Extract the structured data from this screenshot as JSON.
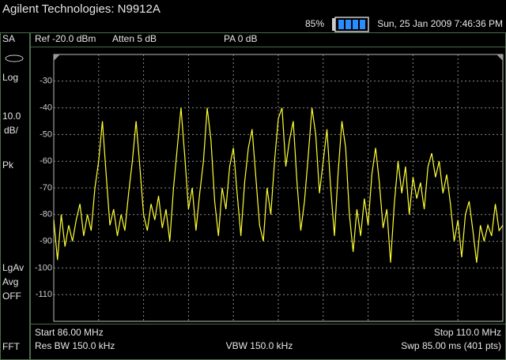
{
  "header": {
    "title": "Agilent Technologies: N9912A",
    "battery": "85%",
    "datetime": "Sun, 25 Jan 2009 7:46:36 PM"
  },
  "sidebar": {
    "mode": "SA",
    "scale_type": "Log",
    "scale": "10.0",
    "scale_unit": "dB/",
    "detector": "Pk",
    "avg_type": "LgAv",
    "avg_label": "Avg",
    "avg_state": "OFF",
    "mode2": "FFT"
  },
  "status": {
    "ref": "Ref -20.0 dBm",
    "atten": "Atten 5 dB",
    "preamp": "PA 0 dB"
  },
  "footer": {
    "start": "Start 86.00 MHz",
    "stop": "Stop 110.0 MHz",
    "rbw": "Res BW 150.0 kHz",
    "vbw": "VBW 150.0 kHz",
    "sweep": "Swp 85.00 ms (401 pts)"
  },
  "chart_data": {
    "type": "line",
    "x": [
      86.0,
      86.2,
      86.4,
      86.6,
      86.8,
      87.0,
      87.2,
      87.4,
      87.6,
      87.8,
      88.0,
      88.2,
      88.4,
      88.6,
      88.8,
      89.0,
      89.2,
      89.4,
      89.6,
      89.8,
      90.0,
      90.2,
      90.4,
      90.6,
      90.8,
      91.0,
      91.2,
      91.4,
      91.6,
      91.8,
      92.0,
      92.2,
      92.4,
      92.6,
      92.8,
      93.0,
      93.2,
      93.4,
      93.6,
      93.8,
      94.0,
      94.2,
      94.4,
      94.6,
      94.8,
      95.0,
      95.2,
      95.4,
      95.6,
      95.8,
      96.0,
      96.2,
      96.4,
      96.6,
      96.8,
      97.0,
      97.2,
      97.4,
      97.6,
      97.8,
      98.0,
      98.2,
      98.4,
      98.6,
      98.8,
      99.0,
      99.2,
      99.4,
      99.6,
      99.8,
      100.0,
      100.2,
      100.4,
      100.6,
      100.8,
      101.0,
      101.2,
      101.4,
      101.6,
      101.8,
      102.0,
      102.2,
      102.4,
      102.6,
      102.8,
      103.0,
      103.2,
      103.4,
      103.6,
      103.8,
      104.0,
      104.2,
      104.4,
      104.6,
      104.8,
      105.0,
      105.2,
      105.4,
      105.6,
      105.8,
      106.0,
      106.2,
      106.4,
      106.6,
      106.8,
      107.0,
      107.2,
      107.4,
      107.6,
      107.8,
      108.0,
      108.2,
      108.4,
      108.6,
      108.8,
      109.0,
      109.2,
      109.4,
      109.6,
      109.8,
      110.0
    ],
    "series": [
      {
        "color": "#ffff33",
        "values": [
          -82,
          -97,
          -80,
          -92,
          -84,
          -90,
          -82,
          -76,
          -88,
          -80,
          -86,
          -70,
          -60,
          -45,
          -65,
          -84,
          -78,
          -88,
          -80,
          -86,
          -72,
          -60,
          -45,
          -62,
          -80,
          -86,
          -76,
          -82,
          -73,
          -85,
          -78,
          -90,
          -70,
          -55,
          -40,
          -58,
          -78,
          -70,
          -86,
          -72,
          -60,
          -40,
          -52,
          -75,
          -88,
          -70,
          -78,
          -62,
          -55,
          -72,
          -88,
          -68,
          -55,
          -48,
          -66,
          -84,
          -90,
          -70,
          -80,
          -60,
          -44,
          -40,
          -62,
          -52,
          -45,
          -68,
          -86,
          -75,
          -58,
          -40,
          -50,
          -72,
          -60,
          -48,
          -70,
          -88,
          -64,
          -45,
          -55,
          -80,
          -94,
          -78,
          -88,
          -74,
          -84,
          -65,
          -55,
          -68,
          -85,
          -78,
          -98,
          -76,
          -60,
          -72,
          -62,
          -80,
          -66,
          -74,
          -68,
          -78,
          -62,
          -57,
          -66,
          -60,
          -72,
          -65,
          -76,
          -90,
          -82,
          -96,
          -80,
          -75,
          -86,
          -98,
          -84,
          -90,
          -84,
          -88,
          -76,
          -86,
          -84
        ]
      }
    ],
    "xlim": [
      86,
      110
    ],
    "ylim": [
      -120,
      -20
    ],
    "yticks": [
      -30,
      -40,
      -50,
      -60,
      -70,
      -80,
      -90,
      -100,
      -110
    ],
    "xticks": [
      88.4,
      90.8,
      93.2,
      95.6,
      98.0,
      100.4,
      102.8,
      105.2,
      107.6
    ],
    "grid": true
  }
}
